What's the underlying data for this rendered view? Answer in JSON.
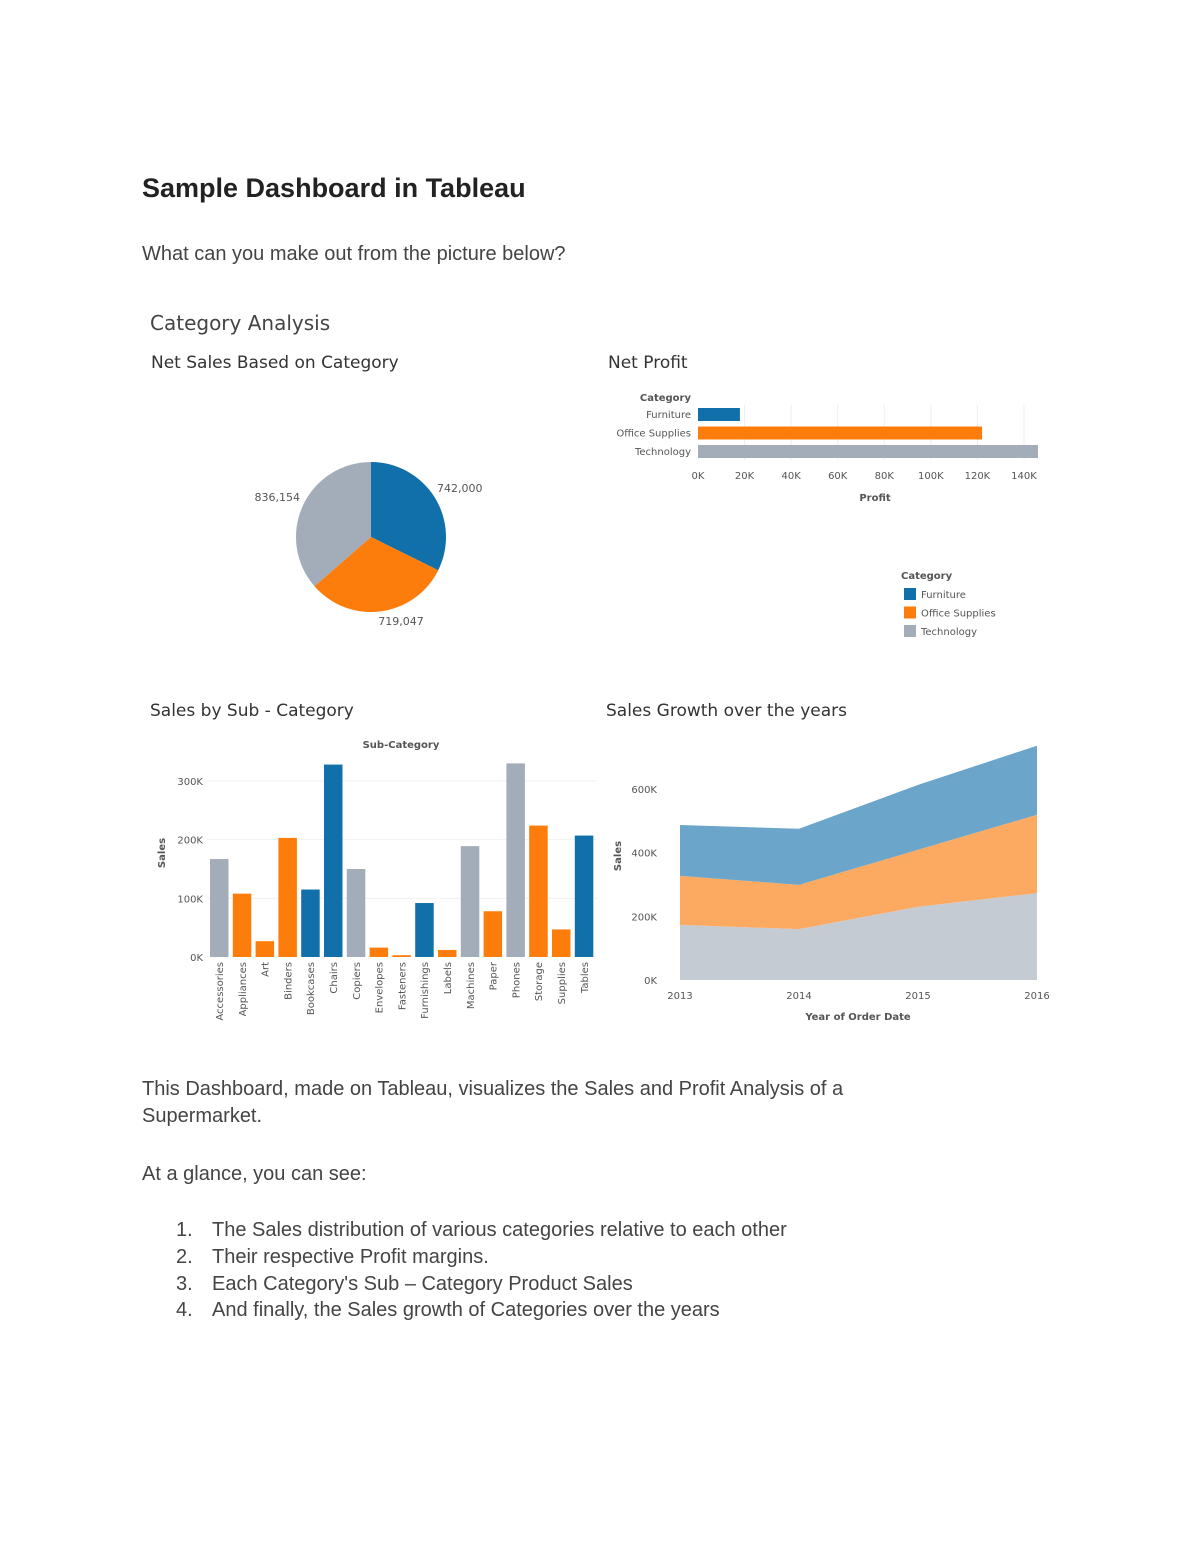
{
  "document": {
    "title": "Sample Dashboard in Tableau",
    "question": "What can you make out from the picture below?",
    "description": "This Dashboard, made on Tableau, visualizes the Sales and Profit Analysis of a",
    "description_cont": "Supermarket.",
    "glance_intro": "At a glance, you can see:",
    "list": [
      {
        "num": "1.",
        "text": "The Sales distribution of various categories relative to each other"
      },
      {
        "num": "2.",
        "text": "Their respective Profit margins."
      },
      {
        "num": "3.",
        "text": "Each Category's Sub – Category Product Sales"
      },
      {
        "num": "4.",
        "text": "And finally, the Sales growth of Categories over the years"
      }
    ]
  },
  "dashboard": {
    "title": "Category Analysis",
    "colors": {
      "Furniture": "#1170aa",
      "Office Supplies": "#fc7d0b",
      "Technology": "#a3acb9"
    },
    "legend": {
      "title": "Category",
      "items": [
        "Furniture",
        "Office Supplies",
        "Technology"
      ]
    }
  },
  "chart_data": [
    {
      "type": "pie",
      "title": "Net Sales Based on Category",
      "categories": [
        "Furniture",
        "Office Supplies",
        "Technology"
      ],
      "values": [
        742000,
        719047,
        836154
      ],
      "labels": [
        "742,000",
        "719,047",
        "836,154"
      ]
    },
    {
      "type": "bar",
      "orientation": "horizontal",
      "title": "Net Profit",
      "ylabel": "Category",
      "xlabel": "Profit",
      "categories": [
        "Furniture",
        "Office Supplies",
        "Technology"
      ],
      "values": [
        18000,
        122000,
        146000
      ],
      "xlim": [
        0,
        140000
      ],
      "xticks": [
        "0K",
        "20K",
        "40K",
        "60K",
        "80K",
        "100K",
        "120K",
        "140K"
      ],
      "grid": true
    },
    {
      "type": "bar",
      "title": "Sales by Sub - Category",
      "header": "Sub-Category",
      "ylabel": "Sales",
      "ylim": [
        0,
        300000
      ],
      "yticks": [
        "0K",
        "100K",
        "200K",
        "300K"
      ],
      "categories": [
        "Accessories",
        "Appliances",
        "Art",
        "Binders",
        "Bookcases",
        "Chairs",
        "Copiers",
        "Envelopes",
        "Fasteners",
        "Furnishings",
        "Labels",
        "Machines",
        "Paper",
        "Phones",
        "Storage",
        "Supplies",
        "Tables"
      ],
      "category_group": [
        "Technology",
        "Office Supplies",
        "Office Supplies",
        "Office Supplies",
        "Furniture",
        "Furniture",
        "Technology",
        "Office Supplies",
        "Office Supplies",
        "Furniture",
        "Office Supplies",
        "Technology",
        "Office Supplies",
        "Technology",
        "Office Supplies",
        "Office Supplies",
        "Furniture"
      ],
      "values": [
        167000,
        108000,
        27000,
        203000,
        115000,
        328000,
        150000,
        16000,
        3000,
        92000,
        12000,
        189000,
        78000,
        330000,
        224000,
        47000,
        207000
      ]
    },
    {
      "type": "area",
      "stacked": true,
      "title": "Sales Growth over the years",
      "xlabel": "Year of Order Date",
      "ylabel": "Sales",
      "x": [
        "2013",
        "2014",
        "2015",
        "2016"
      ],
      "yticks": [
        "0K",
        "200K",
        "400K",
        "600K"
      ],
      "ylim": [
        0,
        730000
      ],
      "series": [
        {
          "category": "Technology",
          "values": [
            173000,
            160000,
            230000,
            273000
          ]
        },
        {
          "category": "Office Supplies",
          "values": [
            154000,
            139000,
            179000,
            246000
          ]
        },
        {
          "category": "Furniture",
          "values": [
            160000,
            176000,
            204000,
            217000
          ]
        }
      ],
      "area_colors": {
        "Technology": "#c5cbd3",
        "Office Supplies": "#fcaa61",
        "Furniture": "#6ba5c9"
      }
    }
  ]
}
